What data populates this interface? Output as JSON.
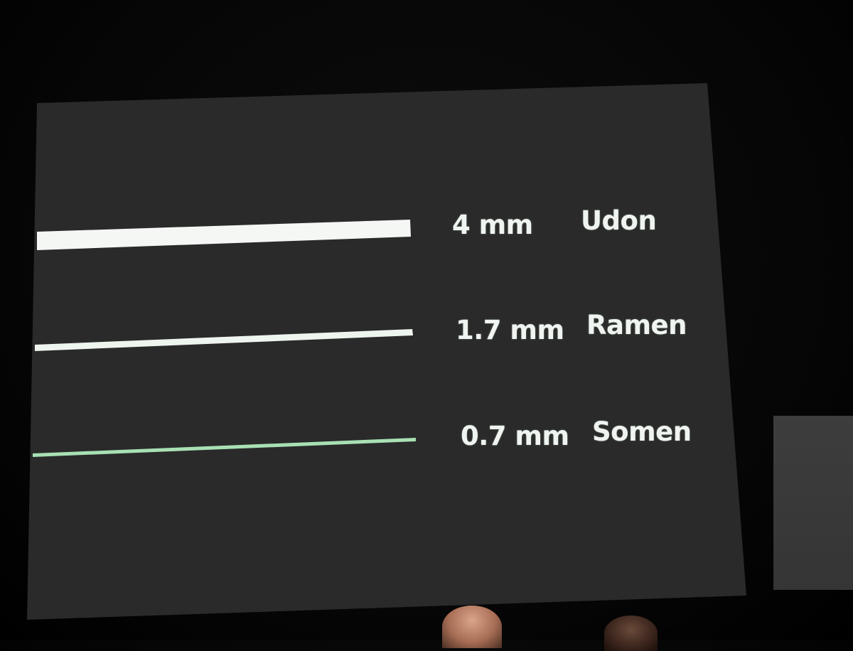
{
  "slide": {
    "background_color": "#2a2a2a",
    "rows": [
      {
        "thickness_label": "4 mm",
        "name": "Udon",
        "line_color": "#f4f7f4"
      },
      {
        "thickness_label": "1.7 mm",
        "name": "Ramen",
        "line_color": "#eef4ee"
      },
      {
        "thickness_label": "0.7 mm",
        "name": "Somen",
        "line_color": "#a8e0b4"
      }
    ]
  },
  "surroundings": {
    "side_screen_color": "#3a3a3a",
    "audience_heads": 2
  }
}
